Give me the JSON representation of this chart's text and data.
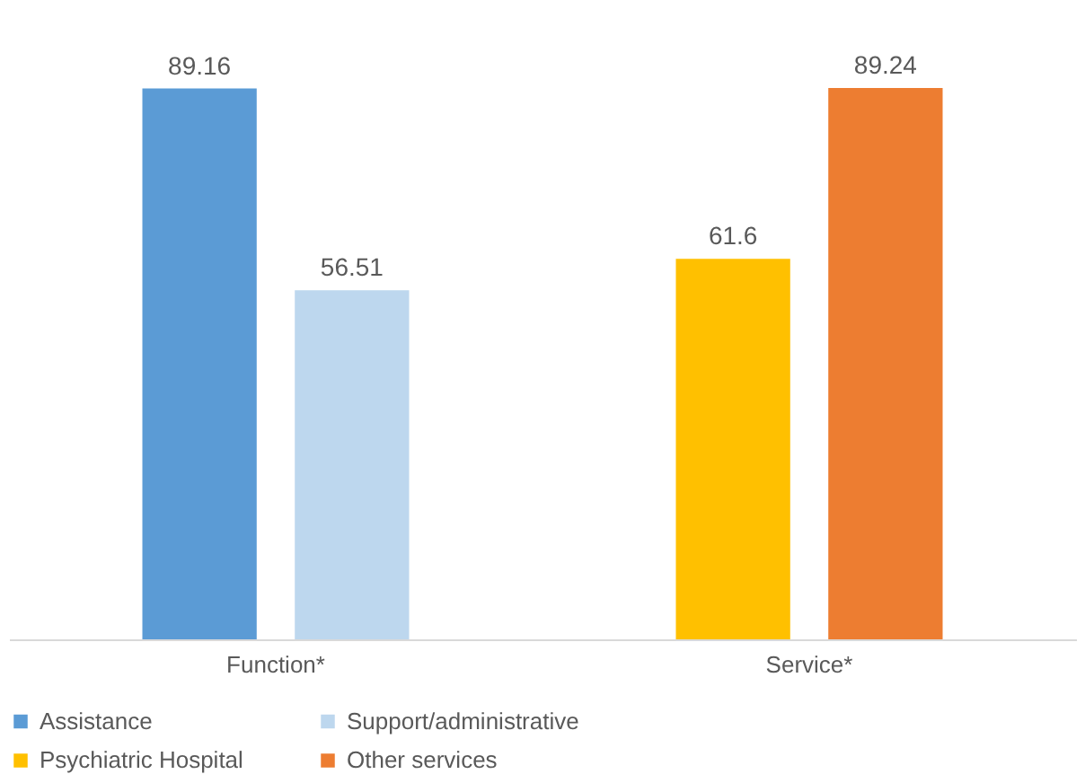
{
  "chart_data": {
    "type": "bar",
    "categories": [
      "Function*",
      "Service*"
    ],
    "series": [
      {
        "name": "Assistance",
        "color": "#5b9bd5",
        "values": [
          89.16,
          null
        ]
      },
      {
        "name": "Support/administrative",
        "color": "#bdd7ee",
        "values": [
          56.51,
          null
        ]
      },
      {
        "name": "Psychiatric Hospital",
        "color": "#ffc000",
        "values": [
          null,
          61.6
        ]
      },
      {
        "name": "Other services",
        "color": "#ed7d31",
        "values": [
          null,
          89.24
        ]
      }
    ],
    "data_labels": true,
    "legend": "bottom"
  }
}
